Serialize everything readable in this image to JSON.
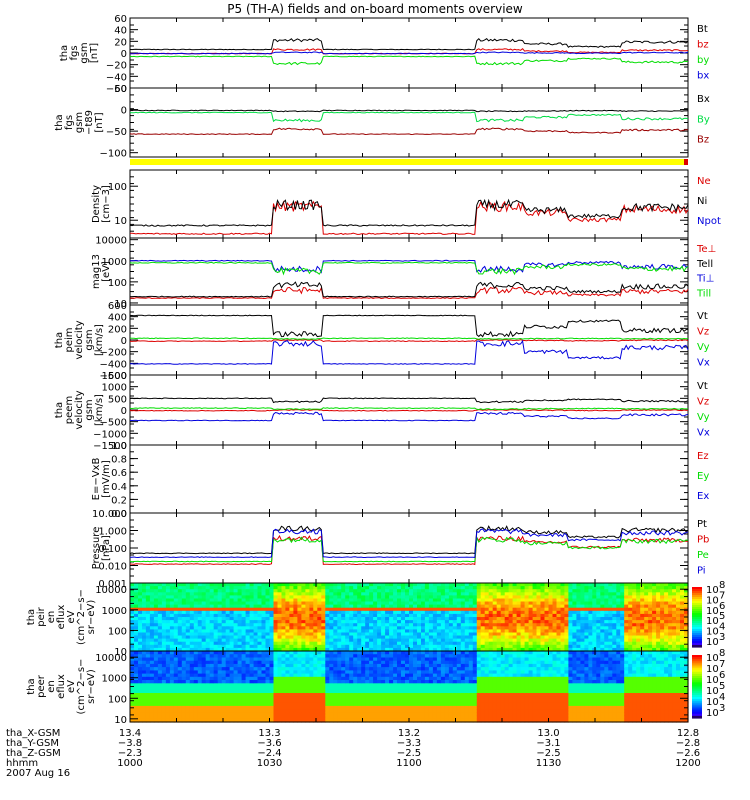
{
  "title": "P5 (TH-A) fields and on-board moments overview",
  "chart_data": [
    {
      "type": "line",
      "id": "fgs",
      "ylabel": [
        "tha",
        "fgs",
        "gsm",
        "[nT]"
      ],
      "ylim": [
        -60,
        60
      ],
      "yticks": [
        "60",
        "40",
        "20",
        "0",
        "−20",
        "−40",
        "−60"
      ],
      "ytick_values": [
        60,
        40,
        20,
        0,
        -20,
        -40,
        -60
      ],
      "legend": [
        {
          "label": "Bt",
          "color": "#000000"
        },
        {
          "label": "bz",
          "color": "#dd0000"
        },
        {
          "label": "by",
          "color": "#00dd00"
        },
        {
          "label": "bx",
          "color": "#0000dd"
        }
      ]
    },
    {
      "type": "line",
      "id": "fgs_t89",
      "ylabel": [
        "tha",
        "fgs",
        "gsm",
        "−t89",
        "[nT]"
      ],
      "ylim": [
        -110,
        50
      ],
      "yticks": [
        "50",
        "0",
        "−50",
        "−100"
      ],
      "ytick_values": [
        50,
        0,
        -50,
        -100
      ],
      "legend": [
        {
          "label": "Bx",
          "color": "#000000"
        },
        {
          "label": "By",
          "color": "#00dd44"
        },
        {
          "label": "Bz",
          "color": "#990000"
        }
      ]
    },
    {
      "type": "bar",
      "id": "mode_bar",
      "colors": [
        "#ffff00",
        "#dd0000"
      ]
    },
    {
      "type": "line",
      "id": "density",
      "ylabel": [
        "Density",
        "[cm−3]"
      ],
      "yscale": "log",
      "ylim": [
        3,
        300
      ],
      "yticks": [
        "100",
        "10"
      ],
      "ytick_values": [
        100,
        10
      ],
      "legend": [
        {
          "label": "Ne",
          "color": "#dd0000"
        },
        {
          "label": "Ni",
          "color": "#000000"
        },
        {
          "label": "Npot",
          "color": "#0000dd"
        }
      ]
    },
    {
      "type": "line",
      "id": "temperature",
      "ylabel": [
        "mag13",
        "[eV]"
      ],
      "yscale": "log",
      "ylim": [
        8,
        12000
      ],
      "yticks": [
        "10000",
        "1000",
        "100",
        "10"
      ],
      "ytick_values": [
        10000,
        1000,
        100,
        10
      ],
      "legend": [
        {
          "label": "Te⊥",
          "color": "#dd0000"
        },
        {
          "label": "Tell",
          "color": "#000000"
        },
        {
          "label": "Ti⊥",
          "color": "#0000dd"
        },
        {
          "label": "Till",
          "color": "#00dd00"
        }
      ]
    },
    {
      "type": "line",
      "id": "peim_velocity",
      "ylabel": [
        "tha",
        "peim",
        "velocity",
        "gsm",
        "[km/s]"
      ],
      "ylim": [
        -600,
        600
      ],
      "yticks": [
        "600",
        "400",
        "200",
        "0",
        "−200",
        "−400",
        "−600"
      ],
      "ytick_values": [
        600,
        400,
        200,
        0,
        -200,
        -400,
        -600
      ],
      "legend": [
        {
          "label": "Vt",
          "color": "#000000"
        },
        {
          "label": "Vz",
          "color": "#dd0000"
        },
        {
          "label": "Vy",
          "color": "#00dd00"
        },
        {
          "label": "Vx",
          "color": "#0000dd"
        }
      ]
    },
    {
      "type": "line",
      "id": "peem_velocity",
      "ylabel": [
        "tha",
        "peem",
        "velocity",
        "gsm",
        "[km/s]"
      ],
      "ylim": [
        -1500,
        1500
      ],
      "yticks": [
        "1500",
        "1000",
        "500",
        "0",
        "−500",
        "−1000",
        "−1500"
      ],
      "ytick_values": [
        1500,
        1000,
        500,
        0,
        -500,
        -1000,
        -1500
      ],
      "legend": [
        {
          "label": "Vt",
          "color": "#000000"
        },
        {
          "label": "Vz",
          "color": "#dd0000"
        },
        {
          "label": "Vy",
          "color": "#00dd00"
        },
        {
          "label": "Vx",
          "color": "#0000dd"
        }
      ]
    },
    {
      "type": "line",
      "id": "efield",
      "ylabel": [
        "E=−VxB",
        "[mV/m]"
      ],
      "ylim": [
        0,
        1
      ],
      "yticks": [
        "1.0",
        "0.8",
        "0.6",
        "0.4",
        "0.2",
        "0.0"
      ],
      "ytick_values": [
        1.0,
        0.8,
        0.6,
        0.4,
        0.2,
        0.0
      ],
      "legend": [
        {
          "label": "Ez",
          "color": "#dd0000"
        },
        {
          "label": "Ey",
          "color": "#00dd00"
        },
        {
          "label": "Ex",
          "color": "#0000dd"
        }
      ]
    },
    {
      "type": "line",
      "id": "pressure",
      "ylabel": [
        "Pressure",
        "[nPa]"
      ],
      "yscale": "log",
      "ylim": [
        0.001,
        10
      ],
      "yticks": [
        "10.000",
        "1.000",
        "0.100",
        "0.010",
        "0.001"
      ],
      "ytick_values": [
        10,
        1,
        0.1,
        0.01,
        0.001
      ],
      "legend": [
        {
          "label": "Pt",
          "color": "#000000"
        },
        {
          "label": "Pb",
          "color": "#dd0000"
        },
        {
          "label": "Pe",
          "color": "#00dd00"
        },
        {
          "label": "Pi",
          "color": "#0000dd"
        }
      ]
    },
    {
      "type": "heatmap",
      "id": "peir_spec",
      "ylabel": [
        "tha",
        "peir",
        "en",
        "eflux",
        "eV",
        "(cm^2−s−",
        "sr−eV)"
      ],
      "yscale": "log",
      "ylim": [
        10,
        20000
      ],
      "yticks": [
        "10000",
        "1000",
        "100",
        "10"
      ],
      "ytick_values": [
        10000,
        1000,
        100,
        10
      ],
      "colorbar": {
        "labels": [
          "8",
          "7",
          "6",
          "5",
          "4",
          "3"
        ],
        "base": "10"
      }
    },
    {
      "type": "heatmap",
      "id": "peer_spec",
      "ylabel": [
        "tha",
        "peer",
        "en",
        "eflux",
        "eV",
        "(cm^2−s−",
        "sr−eV)"
      ],
      "yscale": "log",
      "ylim": [
        7,
        20000
      ],
      "yticks": [
        "10000",
        "1000",
        "100",
        "10"
      ],
      "ytick_values": [
        10000,
        1000,
        100,
        10
      ],
      "colorbar": {
        "labels": [
          "8",
          "7",
          "6",
          "5",
          "4",
          "3"
        ],
        "base": "10"
      }
    }
  ],
  "x_axis": {
    "row_labels": [
      "tha_X-GSM",
      "tha_Y-GSM",
      "tha_Z-GSM",
      "hhmm"
    ],
    "columns": [
      {
        "values": [
          "13.4",
          "−3.8",
          "−2.3",
          "1000"
        ]
      },
      {
        "values": [
          "13.3",
          "−3.6",
          "−2.4",
          "1030"
        ]
      },
      {
        "values": [
          "13.2",
          "−3.3",
          "−2.5",
          "1100"
        ]
      },
      {
        "values": [
          "13.0",
          "−3.1",
          "−2.5",
          "1130"
        ]
      },
      {
        "values": [
          "12.8",
          "−2.8",
          "−2.6",
          "1200"
        ]
      }
    ],
    "date": "2007 Aug 16",
    "time_range_minutes": [
      0,
      120
    ],
    "major_tick_minutes": [
      0,
      30,
      60,
      90,
      120
    ]
  }
}
